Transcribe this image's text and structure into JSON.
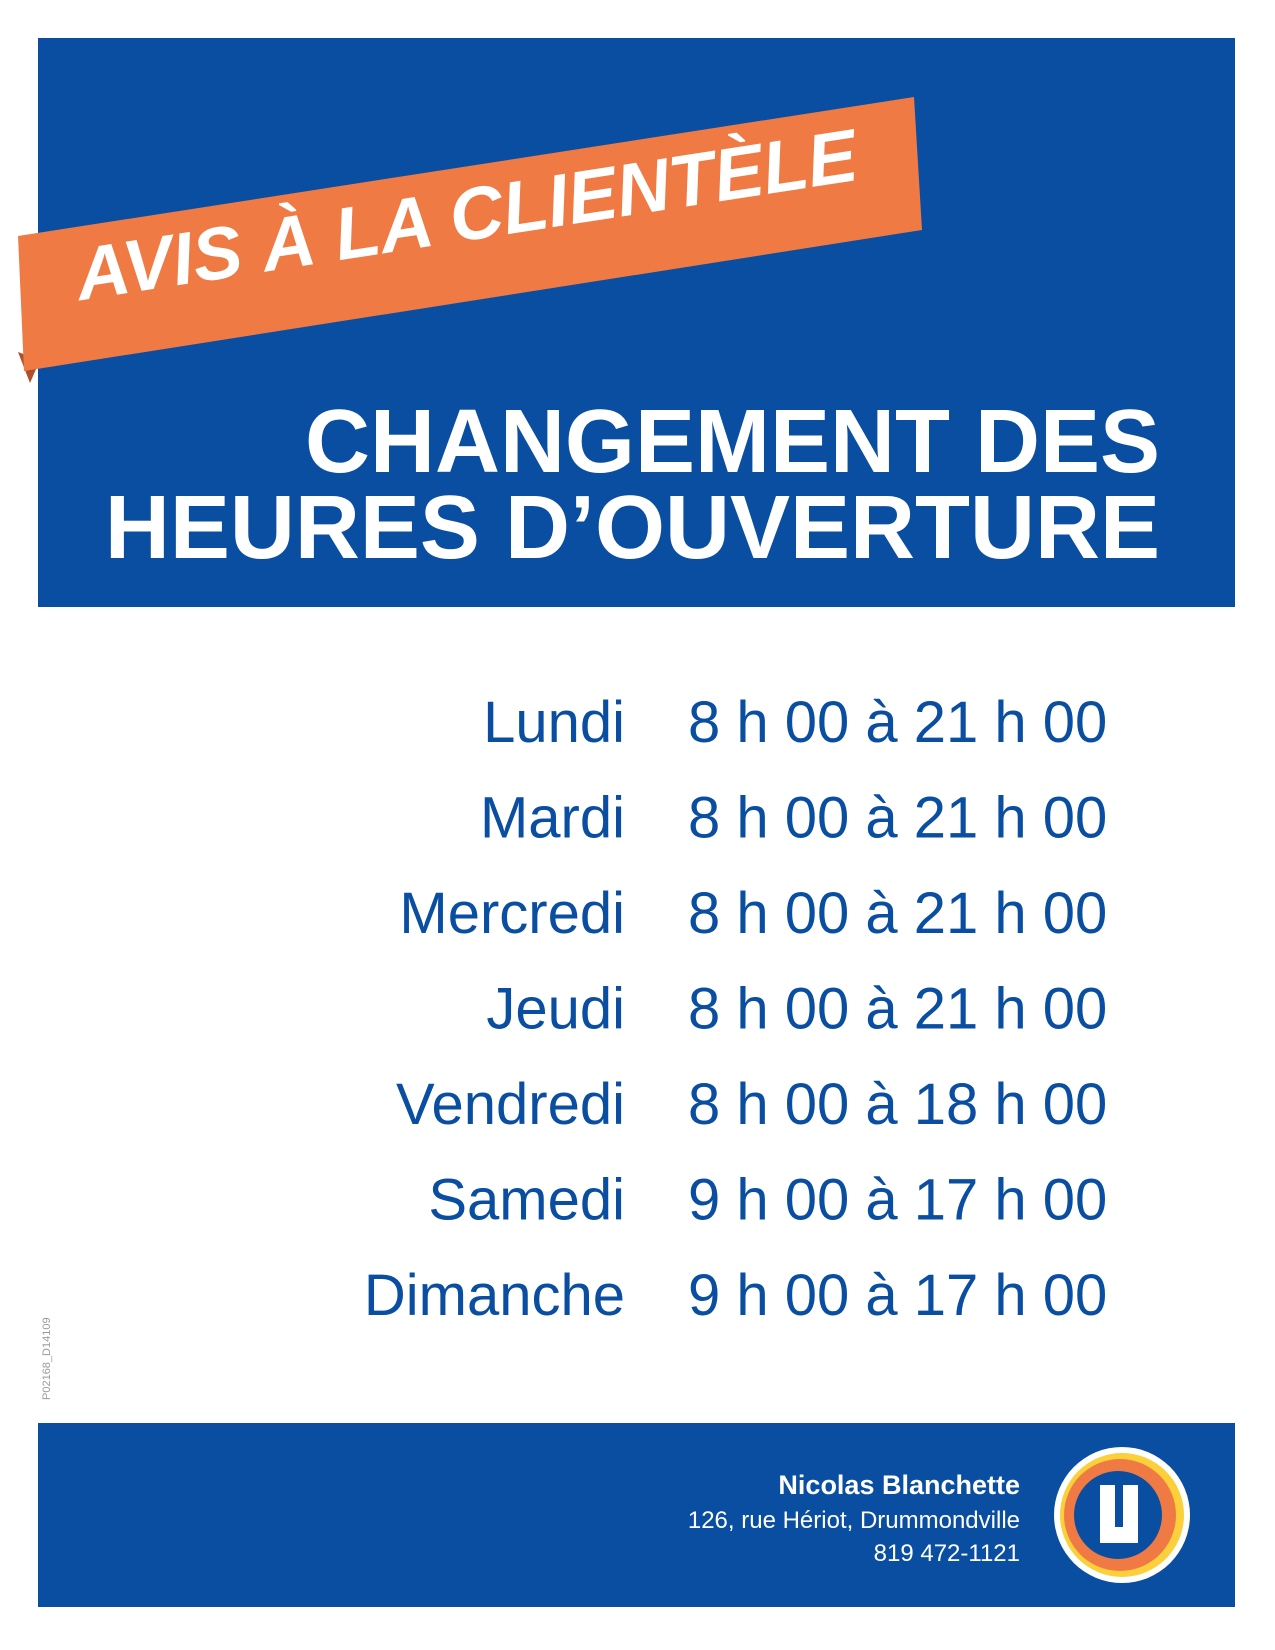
{
  "header": {
    "banner": "AVIS À LA CLIENTÈLE",
    "title_lines": [
      "CHANGEMENT DES",
      "HEURES D’OUVERTURE"
    ]
  },
  "schedule": {
    "rows": [
      {
        "day": "Lundi",
        "hours": "8 h 00 à 21 h 00"
      },
      {
        "day": "Mardi",
        "hours": "8 h 00 à 21 h 00"
      },
      {
        "day": "Mercredi",
        "hours": "8 h 00 à 21 h 00"
      },
      {
        "day": "Jeudi",
        "hours": "8 h 00 à 21 h 00"
      },
      {
        "day": "Vendredi",
        "hours": "8 h 00 à 18 h 00"
      },
      {
        "day": "Samedi",
        "hours": "9 h 00 à 17 h 00"
      },
      {
        "day": "Dimanche",
        "hours": "9 h 00 à 17 h 00"
      }
    ]
  },
  "side_code": "P02168_D14109",
  "footer": {
    "name": "Nicolas Blanchette",
    "address": "126, rue Hériot, Drummondville",
    "phone": "819 472-1121"
  }
}
